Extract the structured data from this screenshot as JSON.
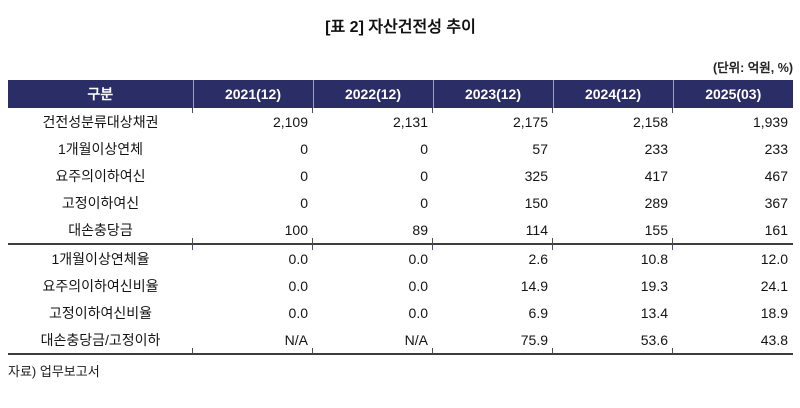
{
  "title": "[표 2] 자산건전성 추이",
  "unit_note": "(단위: 억원, %)",
  "source_note": "자료) 업무보고서",
  "colors": {
    "header_bg": "#2b2e66",
    "header_text": "#ffffff",
    "header_divider": "#9aa0c8",
    "rule_line": "#3d3d3d"
  },
  "table": {
    "columns": [
      "구분",
      "2021(12)",
      "2022(12)",
      "2023(12)",
      "2024(12)",
      "2025(03)"
    ],
    "rows": [
      {
        "label": "건전성분류대상채권",
        "values": [
          "2,109",
          "2,131",
          "2,175",
          "2,158",
          "1,939"
        ]
      },
      {
        "label": "1개월이상연체",
        "values": [
          "0",
          "0",
          "57",
          "233",
          "233"
        ]
      },
      {
        "label": "요주의이하여신",
        "values": [
          "0",
          "0",
          "325",
          "417",
          "467"
        ]
      },
      {
        "label": "고정이하여신",
        "values": [
          "0",
          "0",
          "150",
          "289",
          "367"
        ]
      },
      {
        "label": "대손충당금",
        "values": [
          "100",
          "89",
          "114",
          "155",
          "161"
        ]
      },
      {
        "label": "1개월이상연체율",
        "values": [
          "0.0",
          "0.0",
          "2.6",
          "10.8",
          "12.0"
        ]
      },
      {
        "label": "요주의이하여신비율",
        "values": [
          "0.0",
          "0.0",
          "14.9",
          "19.3",
          "24.1"
        ]
      },
      {
        "label": "고정이하여신비율",
        "values": [
          "0.0",
          "0.0",
          "6.9",
          "13.4",
          "18.9"
        ]
      },
      {
        "label": "대손충당금/고정이하",
        "values": [
          "N/A",
          "N/A",
          "75.9",
          "53.6",
          "43.8"
        ]
      }
    ],
    "section_break_after_row_index": 4
  }
}
